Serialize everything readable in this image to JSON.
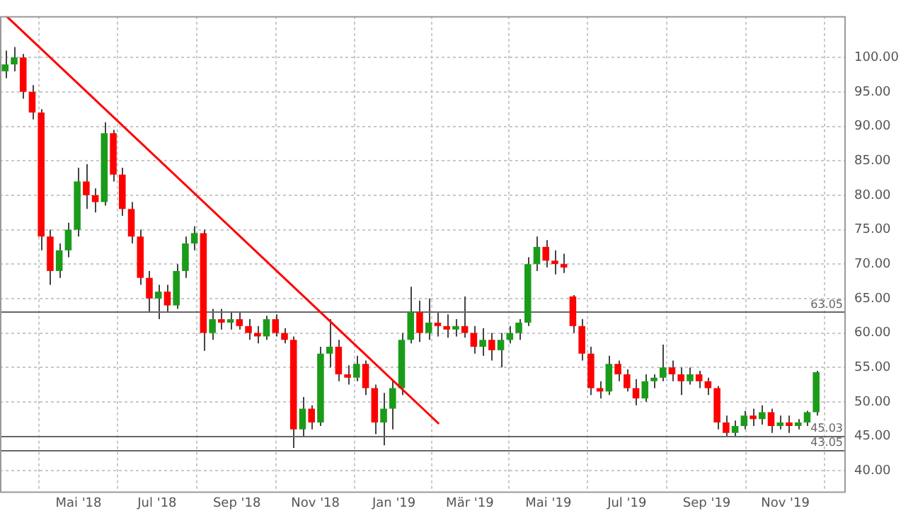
{
  "chart_data": {
    "type": "candlestick",
    "x": [
      "2018-03-05",
      "2018-03-12",
      "2018-03-19",
      "2018-03-26",
      "2018-04-02",
      "2018-04-09",
      "2018-04-16",
      "2018-04-23",
      "2018-04-30",
      "2018-05-07",
      "2018-05-14",
      "2018-05-21",
      "2018-05-28",
      "2018-06-04",
      "2018-06-11",
      "2018-06-18",
      "2018-06-25",
      "2018-07-02",
      "2018-07-09",
      "2018-07-16",
      "2018-07-23",
      "2018-07-30",
      "2018-08-06",
      "2018-08-13",
      "2018-08-20",
      "2018-08-27",
      "2018-09-03",
      "2018-09-10",
      "2018-09-17",
      "2018-09-24",
      "2018-10-01",
      "2018-10-08",
      "2018-10-15",
      "2018-10-22",
      "2018-10-29",
      "2018-11-05",
      "2018-11-12",
      "2018-11-19",
      "2018-11-26",
      "2018-12-03",
      "2018-12-10",
      "2018-12-17",
      "2018-12-24",
      "2018-12-31",
      "2019-01-07",
      "2019-01-14",
      "2019-01-21",
      "2019-01-28",
      "2019-02-04",
      "2019-02-11",
      "2019-02-18",
      "2019-02-25",
      "2019-03-04",
      "2019-03-11",
      "2019-03-18",
      "2019-03-25",
      "2019-04-01",
      "2019-04-08",
      "2019-04-15",
      "2019-04-22",
      "2019-04-29",
      "2019-05-06",
      "2019-05-13",
      "2019-05-20",
      "2019-05-27",
      "2019-06-03",
      "2019-06-10",
      "2019-06-17",
      "2019-06-24",
      "2019-07-01",
      "2019-07-08",
      "2019-07-15",
      "2019-07-22",
      "2019-07-29",
      "2019-08-05",
      "2019-08-12",
      "2019-08-19",
      "2019-08-26",
      "2019-09-02",
      "2019-09-09",
      "2019-09-16",
      "2019-09-23",
      "2019-09-30",
      "2019-10-07",
      "2019-10-14",
      "2019-10-21",
      "2019-10-28",
      "2019-11-04",
      "2019-11-11",
      "2019-11-18",
      "2019-11-25"
    ],
    "ohlc": [
      [
        98,
        101,
        97,
        99
      ],
      [
        99,
        101.5,
        98,
        100
      ],
      [
        100,
        100.5,
        94,
        95
      ],
      [
        95,
        96,
        91,
        92
      ],
      [
        92,
        92.5,
        72,
        74
      ],
      [
        74,
        75,
        67,
        69
      ],
      [
        69,
        73,
        68,
        72
      ],
      [
        72,
        76,
        71,
        75
      ],
      [
        75,
        84,
        74,
        82
      ],
      [
        82,
        84.5,
        78,
        80
      ],
      [
        80,
        81,
        77.5,
        79
      ],
      [
        79,
        90.6,
        78.5,
        89
      ],
      [
        89,
        89.5,
        82,
        83
      ],
      [
        83,
        84,
        77,
        78
      ],
      [
        78,
        79,
        73,
        74
      ],
      [
        74,
        75,
        67,
        68
      ],
      [
        68,
        69,
        63,
        65
      ],
      [
        65,
        67,
        62,
        66
      ],
      [
        66,
        67,
        63,
        64
      ],
      [
        64,
        70,
        63.5,
        69
      ],
      [
        69,
        74,
        68,
        73
      ],
      [
        73,
        75.5,
        72,
        74.5
      ],
      [
        74.5,
        75,
        57.4,
        60
      ],
      [
        60,
        63.5,
        59,
        62
      ],
      [
        62,
        63.5,
        60.5,
        61.5
      ],
      [
        61.5,
        63,
        60.5,
        62
      ],
      [
        62,
        63,
        60.5,
        61
      ],
      [
        61,
        62,
        59,
        60
      ],
      [
        60,
        61,
        58.5,
        59.5
      ],
      [
        59.5,
        62.5,
        59,
        62
      ],
      [
        62,
        62.7,
        59.5,
        60
      ],
      [
        60,
        60.7,
        58.5,
        59
      ],
      [
        59,
        59.5,
        43.3,
        46
      ],
      [
        46,
        50.7,
        45,
        49
      ],
      [
        49,
        49.5,
        46,
        47
      ],
      [
        47,
        58,
        46.5,
        57
      ],
      [
        57,
        62,
        55,
        58
      ],
      [
        58,
        59,
        53,
        54
      ],
      [
        54,
        55.3,
        52.5,
        53.5
      ],
      [
        53.5,
        56.7,
        53,
        55.5
      ],
      [
        55.5,
        56,
        51,
        52
      ],
      [
        52,
        52.5,
        45.3,
        47
      ],
      [
        47,
        51.3,
        43.7,
        49
      ],
      [
        49,
        53,
        46,
        52
      ],
      [
        52,
        60,
        51,
        59
      ],
      [
        59,
        66.7,
        58.5,
        63
      ],
      [
        63,
        64.7,
        58.7,
        60
      ],
      [
        60,
        65,
        59,
        61.5
      ],
      [
        61.5,
        63,
        59.5,
        61
      ],
      [
        61,
        62.7,
        59.3,
        60.5
      ],
      [
        60.5,
        62,
        59.5,
        61
      ],
      [
        61,
        65.3,
        59.3,
        60
      ],
      [
        60,
        61,
        57,
        58
      ],
      [
        58,
        60.7,
        56.7,
        59
      ],
      [
        59,
        60,
        56,
        57.5
      ],
      [
        57.5,
        60,
        55,
        59
      ],
      [
        59,
        61,
        58.5,
        60
      ],
      [
        60,
        62,
        59,
        61.5
      ],
      [
        61.5,
        71,
        61,
        70
      ],
      [
        70,
        74,
        69,
        72.5
      ],
      [
        72.5,
        73.5,
        69.5,
        70.5
      ],
      [
        70.5,
        72,
        68.5,
        70
      ],
      [
        70,
        71.5,
        68.7,
        69.5
      ],
      [
        65.3,
        65.5,
        60,
        61
      ],
      [
        61,
        62,
        56,
        57
      ],
      [
        57,
        58,
        51,
        52
      ],
      [
        52,
        53,
        50.5,
        51.5
      ],
      [
        51.5,
        56.7,
        51,
        55.5
      ],
      [
        55.5,
        56,
        53,
        54
      ],
      [
        54,
        54.7,
        51.5,
        52
      ],
      [
        52,
        53.3,
        49.5,
        50.5
      ],
      [
        50.5,
        54,
        50,
        53
      ],
      [
        53,
        54,
        52,
        53.5
      ],
      [
        53.5,
        58.3,
        53,
        55
      ],
      [
        55,
        56,
        53,
        54
      ],
      [
        54,
        55,
        51,
        53
      ],
      [
        53,
        55,
        52.5,
        54
      ],
      [
        54,
        54.5,
        52,
        53
      ],
      [
        53,
        53.5,
        51,
        52
      ],
      [
        52,
        52.3,
        46,
        47
      ],
      [
        47,
        48,
        45,
        45.5
      ],
      [
        45.5,
        47.3,
        45,
        46.5
      ],
      [
        46.5,
        48.7,
        46,
        48
      ],
      [
        48,
        49,
        46.5,
        47.5
      ],
      [
        47.5,
        49.5,
        46.7,
        48.5
      ],
      [
        48.5,
        49,
        45.5,
        46.5
      ],
      [
        46.5,
        48,
        46,
        47
      ],
      [
        47,
        48,
        45.5,
        46.5
      ],
      [
        46.5,
        47.5,
        46,
        47
      ],
      [
        47,
        48.7,
        46.5,
        48.5
      ],
      [
        48.5,
        54.5,
        48,
        54.3
      ]
    ],
    "colors": [
      "#1a9c1a",
      "#1a9c1a",
      "#ff0000",
      "#ff0000",
      "#ff0000",
      "#ff0000",
      "#1a9c1a",
      "#1a9c1a",
      "#1a9c1a",
      "#ff0000",
      "#ff0000",
      "#1a9c1a",
      "#ff0000",
      "#ff0000",
      "#ff0000",
      "#ff0000",
      "#ff0000",
      "#1a9c1a",
      "#ff0000",
      "#1a9c1a",
      "#1a9c1a",
      "#1a9c1a",
      "#ff0000",
      "#1a9c1a",
      "#ff0000",
      "#1a9c1a",
      "#ff0000",
      "#ff0000",
      "#ff0000",
      "#1a9c1a",
      "#ff0000",
      "#ff0000",
      "#ff0000",
      "#1a9c1a",
      "#ff0000",
      "#1a9c1a",
      "#1a9c1a",
      "#ff0000",
      "#ff0000",
      "#1a9c1a",
      "#ff0000",
      "#ff0000",
      "#1a9c1a",
      "#1a9c1a",
      "#1a9c1a",
      "#1a9c1a",
      "#ff0000",
      "#1a9c1a",
      "#ff0000",
      "#ff0000",
      "#1a9c1a",
      "#ff0000",
      "#ff0000",
      "#1a9c1a",
      "#ff0000",
      "#1a9c1a",
      "#1a9c1a",
      "#1a9c1a",
      "#1a9c1a",
      "#1a9c1a",
      "#ff0000",
      "#ff0000",
      "#ff0000",
      "#ff0000",
      "#ff0000",
      "#ff0000",
      "#ff0000",
      "#1a9c1a",
      "#ff0000",
      "#ff0000",
      "#ff0000",
      "#1a9c1a",
      "#1a9c1a",
      "#1a9c1a",
      "#ff0000",
      "#ff0000",
      "#1a9c1a",
      "#ff0000",
      "#ff0000",
      "#ff0000",
      "#ff0000",
      "#1a9c1a",
      "#1a9c1a",
      "#ff0000",
      "#1a9c1a",
      "#ff0000",
      "#1a9c1a",
      "#ff0000",
      "#1a9c1a",
      "#1a9c1a",
      "#1a9c1a"
    ],
    "series": [
      {
        "type": "line",
        "color": "#ff0000",
        "x": [
          "2018-03-06",
          "2019-02-05"
        ],
        "values": [
          106,
          46.8
        ]
      }
    ],
    "ylim": [
      37,
      106
    ],
    "yticks": [
      {
        "value": 40,
        "label": "40.00"
      },
      {
        "value": 45,
        "label": "45.00"
      },
      {
        "value": 50,
        "label": "50.00"
      },
      {
        "value": 55,
        "label": "55.00"
      },
      {
        "value": 60,
        "label": "60.00"
      },
      {
        "value": 65,
        "label": "65.00"
      },
      {
        "value": 70,
        "label": "70.00"
      },
      {
        "value": 75,
        "label": "75.00"
      },
      {
        "value": 80,
        "label": "80.00"
      },
      {
        "value": 85,
        "label": "85.00"
      },
      {
        "value": 90,
        "label": "90.00"
      },
      {
        "value": 95,
        "label": "95.00"
      },
      {
        "value": 100,
        "label": "100.00"
      }
    ],
    "xlim": [
      "2018-03-01",
      "2019-12-18"
    ],
    "xticks": [
      {
        "value": "2018-05-01",
        "label": "Mai '18"
      },
      {
        "value": "2018-07-01",
        "label": "Jul '18"
      },
      {
        "value": "2018-09-01",
        "label": "Sep '18"
      },
      {
        "value": "2018-11-01",
        "label": "Nov '18"
      },
      {
        "value": "2019-01-01",
        "label": "Jan '19"
      },
      {
        "value": "2019-03-01",
        "label": "Mär '19"
      },
      {
        "value": "2019-05-01",
        "label": "Mai '19"
      },
      {
        "value": "2019-07-01",
        "label": "Jul '19"
      },
      {
        "value": "2019-09-01",
        "label": "Sep '19"
      },
      {
        "value": "2019-11-01",
        "label": "Nov '19"
      }
    ],
    "grid": true,
    "ref_lines": [
      {
        "axis": "y",
        "value": 63.05,
        "label": "63.05",
        "color": "#666666"
      },
      {
        "axis": "y",
        "value": 45.03,
        "label": "45.03",
        "color": "#666666"
      },
      {
        "axis": "y",
        "value": 43.05,
        "label": "43.05",
        "color": "#666666"
      }
    ]
  }
}
